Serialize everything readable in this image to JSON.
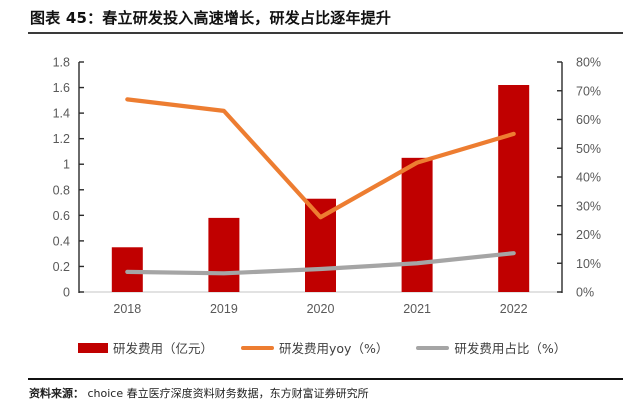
{
  "header": {
    "title": "图表 45：春立研发投入高速增长，研发占比逐年提升"
  },
  "colors": {
    "bar": "#C00000",
    "yoy_line": "#ED7D31",
    "share_line": "#A5A5A5",
    "axis_line": "#2b2b2b",
    "axis_text": "#595959",
    "baseline": "#D9D9D9"
  },
  "legend": {
    "items": [
      {
        "label": "研发费用（亿元）",
        "type": "bar",
        "color": "#C00000"
      },
      {
        "label": "研发费用yoy（%）",
        "type": "line",
        "color": "#ED7D31"
      },
      {
        "label": "研发费用占比（%）",
        "type": "line",
        "color": "#A5A5A5"
      }
    ]
  },
  "chart_data": {
    "type": "bar",
    "title": "图表 45：春立研发投入高速增长，研发占比逐年提升",
    "categories": [
      "2018",
      "2019",
      "2020",
      "2021",
      "2022"
    ],
    "series": [
      {
        "name": "研发费用（亿元）",
        "type": "bar",
        "axis": "left",
        "color": "#C00000",
        "values": [
          0.35,
          0.58,
          0.73,
          1.05,
          1.62
        ]
      },
      {
        "name": "研发费用yoy（%）",
        "type": "line",
        "axis": "right",
        "color": "#ED7D31",
        "values": [
          67,
          63,
          26,
          45,
          55
        ]
      },
      {
        "name": "研发费用占比（%）",
        "type": "line",
        "axis": "right",
        "color": "#A5A5A5",
        "values": [
          7,
          6.5,
          8,
          10,
          13.5
        ]
      }
    ],
    "left_axis": {
      "min": 0,
      "max": 1.8,
      "step": 0.2,
      "ticks": [
        "1.8",
        "1.6",
        "1.4",
        "1.2",
        "1",
        "0.8",
        "0.6",
        "0.4",
        "0.2",
        "0"
      ]
    },
    "right_axis": {
      "min": 0,
      "max": 80,
      "step": 10,
      "ticks": [
        "80%",
        "70%",
        "60%",
        "50%",
        "40%",
        "30%",
        "20%",
        "10%",
        "0%"
      ]
    },
    "grid": false,
    "legend_position": "bottom"
  },
  "footer": {
    "source_label": "资料来源：",
    "source_text": " choice 春立医疗深度资料财务数据，东方财富证券研究所"
  }
}
